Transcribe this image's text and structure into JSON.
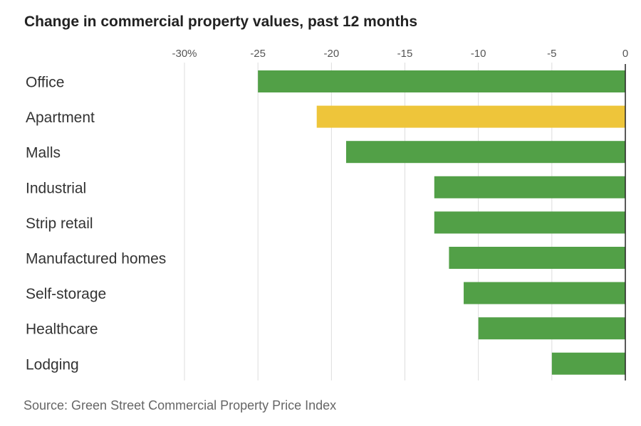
{
  "chart_data": {
    "type": "bar",
    "orientation": "horizontal",
    "title": "Change in commercial property values, past 12 months",
    "source": "Source: Green Street Commercial Property Price Index",
    "xlim": [
      -30,
      0
    ],
    "xticks": [
      -30,
      -25,
      -20,
      -15,
      -10,
      -5,
      0
    ],
    "xtick_labels": [
      "-30%",
      "-25",
      "-20",
      "-15",
      "-10",
      "-5",
      "0"
    ],
    "categories": [
      "Office",
      "Apartment",
      "Malls",
      "Industrial",
      "Strip retail",
      "Manufactured homes",
      "Self-storage",
      "Healthcare",
      "Lodging"
    ],
    "values": [
      -25,
      -21,
      -19,
      -13,
      -13,
      -12,
      -11,
      -10,
      -5
    ],
    "bar_colors": [
      "#52a047",
      "#eec53a",
      "#52a047",
      "#52a047",
      "#52a047",
      "#52a047",
      "#52a047",
      "#52a047",
      "#52a047"
    ],
    "grid": true,
    "xlabel": "",
    "ylabel": ""
  }
}
